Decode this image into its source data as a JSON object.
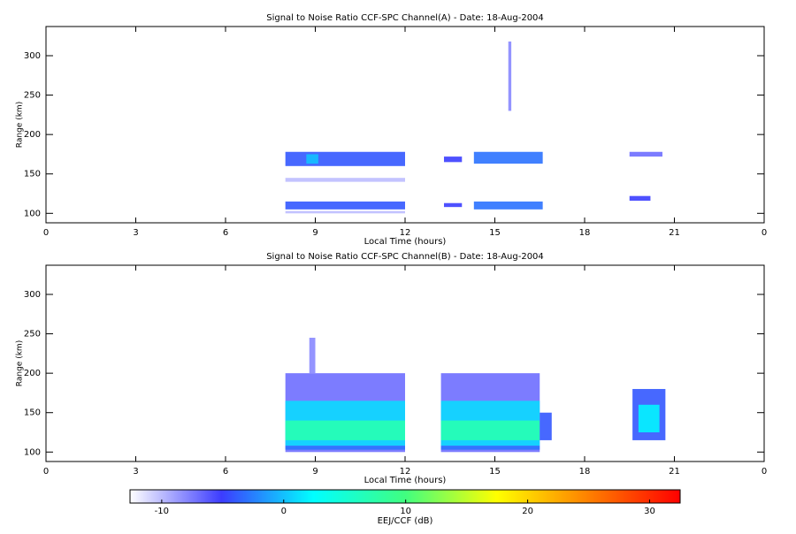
{
  "chart_data": [
    {
      "type": "heatmap",
      "title": "Signal to Noise Ratio CCF-SPC Channel(A) - Date: 18-Aug-2004",
      "x_label": "Local Time (hours)",
      "y_label": "Range (km)",
      "xlim": [
        0,
        24
      ],
      "xticks": [
        0,
        3,
        6,
        9,
        12,
        15,
        18,
        21,
        {
          "value": 24,
          "label": "0"
        }
      ],
      "ylim": [
        88,
        337
      ],
      "yticks": [
        100,
        150,
        200,
        250,
        300
      ],
      "regions": [
        {
          "x0": 8,
          "x1": 12,
          "y0": 140,
          "y1": 145,
          "value": -10
        },
        {
          "x0": 8,
          "x1": 12,
          "y0": 100,
          "y1": 103,
          "value": -10
        },
        {
          "x0": 8,
          "x1": 12,
          "y0": 160,
          "y1": 178,
          "value": -4
        },
        {
          "x0": 8,
          "x1": 12,
          "y0": 105,
          "y1": 115,
          "value": -4
        },
        {
          "x0": 8.7,
          "x1": 9.1,
          "y0": 163,
          "y1": 175,
          "value": 0
        },
        {
          "x0": 13.3,
          "x1": 13.9,
          "y0": 165,
          "y1": 172,
          "value": -5
        },
        {
          "x0": 13.3,
          "x1": 13.9,
          "y0": 108,
          "y1": 113,
          "value": -5
        },
        {
          "x0": 14.3,
          "x1": 16.6,
          "y0": 163,
          "y1": 178,
          "value": -3
        },
        {
          "x0": 14.3,
          "x1": 16.6,
          "y0": 105,
          "y1": 115,
          "value": -3
        },
        {
          "x0": 15.45,
          "x1": 15.55,
          "y0": 230,
          "y1": 318,
          "value": -8
        },
        {
          "x0": 19.5,
          "x1": 20.6,
          "y0": 172,
          "y1": 178,
          "value": -7
        },
        {
          "x0": 19.5,
          "x1": 20.2,
          "y0": 116,
          "y1": 122,
          "value": -5
        }
      ]
    },
    {
      "type": "heatmap",
      "title": "Signal to Noise Ratio CCF-SPC Channel(B) - Date: 18-Aug-2004",
      "x_label": "Local Time (hours)",
      "y_label": "Range (km)",
      "xlim": [
        0,
        24
      ],
      "xticks": [
        0,
        3,
        6,
        9,
        12,
        15,
        18,
        21,
        {
          "value": 24,
          "label": "0"
        }
      ],
      "ylim": [
        88,
        337
      ],
      "yticks": [
        100,
        150,
        200,
        250,
        300
      ],
      "regions": [
        {
          "x0": 8,
          "x1": 12,
          "y0": 100,
          "y1": 200,
          "value": -7
        },
        {
          "x0": 8.8,
          "x1": 9.0,
          "y0": 200,
          "y1": 245,
          "value": -8
        },
        {
          "x0": 8,
          "x1": 12,
          "y0": 108,
          "y1": 165,
          "value": 1
        },
        {
          "x0": 8,
          "x1": 12,
          "y0": 115,
          "y1": 140,
          "value": 7
        },
        {
          "x0": 8,
          "x1": 12,
          "y0": 103,
          "y1": 108,
          "value": -3
        },
        {
          "x0": 13.2,
          "x1": 16.5,
          "y0": 100,
          "y1": 200,
          "value": -7
        },
        {
          "x0": 13.2,
          "x1": 16.5,
          "y0": 108,
          "y1": 165,
          "value": 1
        },
        {
          "x0": 13.2,
          "x1": 16.5,
          "y0": 115,
          "y1": 140,
          "value": 7
        },
        {
          "x0": 13.2,
          "x1": 16.5,
          "y0": 103,
          "y1": 108,
          "value": -3
        },
        {
          "x0": 16.5,
          "x1": 16.9,
          "y0": 115,
          "y1": 150,
          "value": -4
        },
        {
          "x0": 19.6,
          "x1": 20.7,
          "y0": 115,
          "y1": 180,
          "value": -4
        },
        {
          "x0": 19.8,
          "x1": 20.5,
          "y0": 125,
          "y1": 160,
          "value": 2
        }
      ]
    },
    {
      "type": "colorbar",
      "x_label": "EEJ/CCF (dB)",
      "xlim": [
        -12.6,
        32.5
      ],
      "xticks": [
        -10,
        0,
        10,
        20,
        30
      ],
      "colors": [
        "#ffffff",
        "#3c3cff",
        "#00ffff",
        "#40ff80",
        "#ffff00",
        "#ff8000",
        "#ff0000"
      ]
    }
  ]
}
